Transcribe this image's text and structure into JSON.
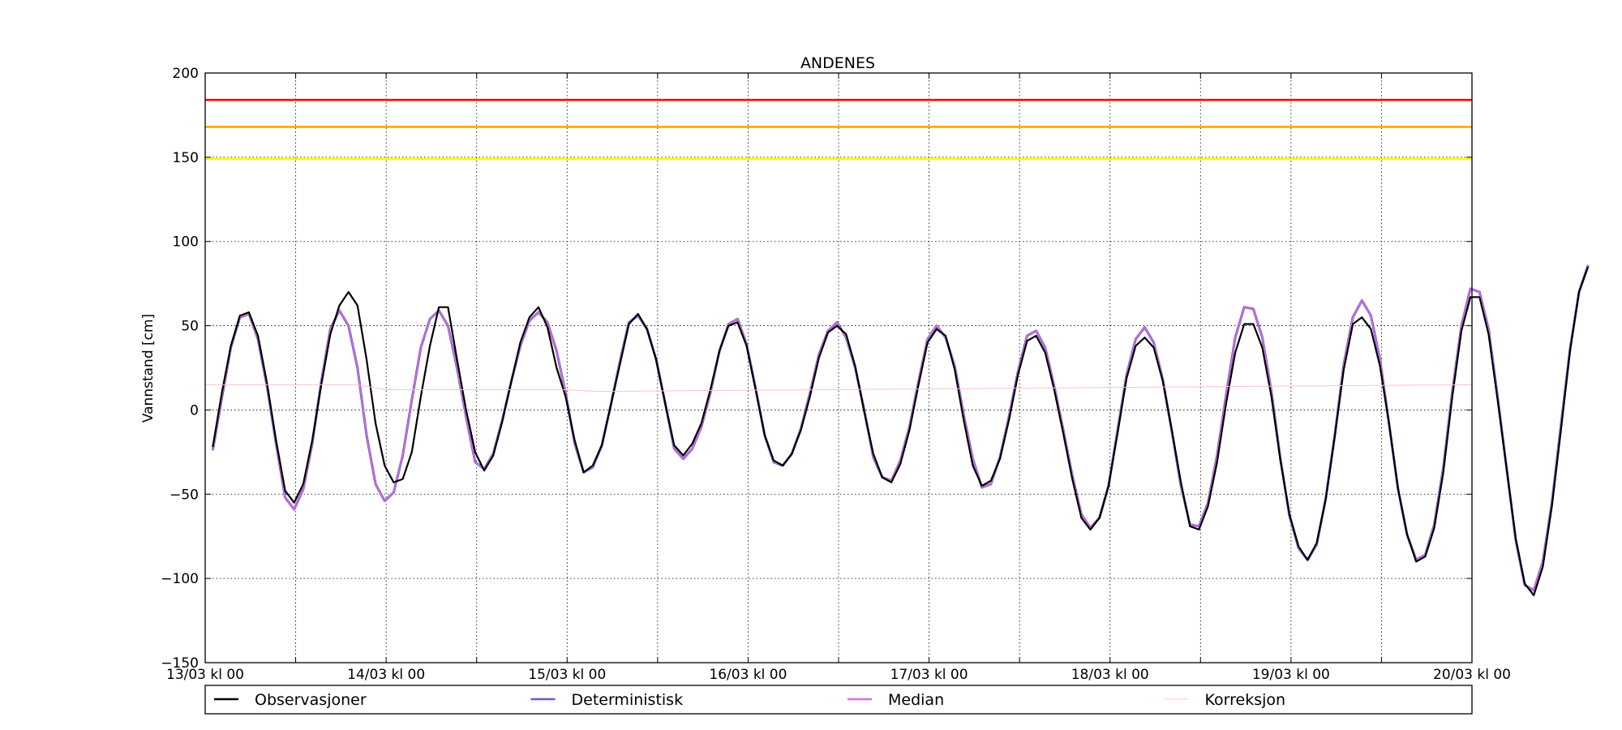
{
  "chart_data": {
    "type": "line",
    "title": "ANDENES",
    "xlabel": "",
    "ylabel": "Vannstand [cm]",
    "ylim": [
      -150,
      200
    ],
    "xlim_hours": [
      0,
      168
    ],
    "yticks": [
      -150,
      -100,
      -50,
      0,
      50,
      100,
      150,
      200
    ],
    "xtick_labels": [
      "13/03 kl 00",
      "14/03 kl 00",
      "15/03 kl 00",
      "16/03 kl 00",
      "17/03 kl 00",
      "18/03 kl 00",
      "19/03 kl 00",
      "20/03 kl 00"
    ],
    "grid": true,
    "legend_position": "below",
    "thresholds": [
      {
        "value": 184,
        "color": "#ff0000"
      },
      {
        "value": 168,
        "color": "#ffa500"
      },
      {
        "value": 149,
        "color": "#ffff00"
      }
    ],
    "series": [
      {
        "name": "Deterministisk",
        "color": "#6a5acd",
        "start": 1,
        "step": 1.2,
        "values": [
          -24,
          7,
          37,
          55,
          57,
          42,
          14,
          -20,
          -52,
          -59,
          -47,
          -20,
          17,
          48,
          59,
          50,
          25,
          -15,
          -44,
          -54,
          -49,
          -27,
          6,
          37,
          54,
          59,
          50,
          25,
          -4,
          -31,
          -35,
          -26,
          -6,
          17,
          38,
          53,
          58,
          52,
          35,
          10,
          -20,
          -37,
          -34,
          -21,
          3,
          29,
          52,
          56,
          48,
          30,
          4,
          -23,
          -29,
          -23,
          -10,
          10,
          35,
          51,
          54,
          39,
          13,
          -15,
          -31,
          -33,
          -26,
          -11,
          10,
          33,
          47,
          52,
          43,
          25,
          0,
          -28,
          -40,
          -42,
          -30,
          -10,
          17,
          42,
          50,
          43,
          26,
          -3,
          -29,
          -46,
          -44,
          -28,
          -4,
          23,
          44,
          47,
          37,
          14,
          -12,
          -39,
          -62,
          -70,
          -64,
          -45,
          -12,
          21,
          42,
          49,
          40,
          18,
          -13,
          -45,
          -68,
          -69,
          -55,
          -27,
          9,
          43,
          61,
          60,
          43,
          11,
          -29,
          -63,
          -82,
          -89,
          -80,
          -53,
          -15,
          27,
          55,
          65,
          56,
          30,
          -8,
          -47,
          -74,
          -89,
          -86,
          -68,
          -34,
          11,
          50,
          72,
          70,
          48,
          8,
          -35,
          -77,
          -104,
          -107,
          -90,
          -55,
          -9,
          36,
          70,
          86
        ]
      },
      {
        "name": "Median",
        "color": "#da70d6",
        "start": 1,
        "step": 1.2,
        "values": [
          -24,
          7,
          37,
          55,
          57,
          42,
          14,
          -20,
          -52,
          -59,
          -47,
          -20,
          17,
          48,
          59,
          50,
          25,
          -15,
          -44,
          -54,
          -49,
          -27,
          6,
          37,
          54,
          59,
          50,
          25,
          -4,
          -31,
          -35,
          -26,
          -6,
          17,
          38,
          53,
          58,
          52,
          35,
          10,
          -20,
          -37,
          -34,
          -21,
          3,
          29,
          52,
          56,
          48,
          30,
          4,
          -23,
          -29,
          -23,
          -10,
          10,
          35,
          51,
          54,
          39,
          13,
          -15,
          -31,
          -33,
          -26,
          -11,
          10,
          33,
          47,
          52,
          43,
          25,
          0,
          -28,
          -40,
          -42,
          -30,
          -10,
          17,
          42,
          50,
          43,
          26,
          -3,
          -29,
          -46,
          -44,
          -28,
          -4,
          23,
          44,
          47,
          37,
          14,
          -12,
          -39,
          -62,
          -70,
          -64,
          -45,
          -12,
          21,
          42,
          49,
          40,
          18,
          -13,
          -45,
          -68,
          -69,
          -55,
          -27,
          9,
          43,
          61,
          60,
          43,
          11,
          -29,
          -63,
          -82,
          -89,
          -80,
          -53,
          -15,
          27,
          55,
          65,
          56,
          30,
          -8,
          -47,
          -74,
          -89,
          -86,
          -68,
          -34,
          11,
          50,
          72,
          70,
          48,
          8,
          -35,
          -77,
          -104,
          -107,
          -90,
          -55,
          -9,
          36,
          70,
          86
        ]
      },
      {
        "name": "Observasjoner",
        "color": "#000000",
        "start": 1,
        "step": 1.2,
        "values": [
          -22,
          10,
          38,
          56,
          58,
          44,
          16,
          -18,
          -48,
          -55,
          -44,
          -18,
          15,
          45,
          62,
          70,
          62,
          30,
          -8,
          -33,
          -43,
          -41,
          -25,
          8,
          38,
          61,
          61,
          30,
          0,
          -25,
          -36,
          -27,
          -7,
          17,
          40,
          55,
          61,
          49,
          25,
          8,
          -18,
          -37,
          -33,
          -21,
          3,
          27,
          51,
          57,
          48,
          30,
          4,
          -21,
          -27,
          -20,
          -8,
          12,
          35,
          50,
          52,
          38,
          12,
          -15,
          -30,
          -33,
          -26,
          -12,
          8,
          31,
          46,
          50,
          45,
          26,
          -1,
          -26,
          -40,
          -43,
          -32,
          -12,
          15,
          40,
          48,
          44,
          24,
          -6,
          -33,
          -45,
          -42,
          -29,
          -6,
          21,
          41,
          44,
          34,
          12,
          -14,
          -41,
          -64,
          -71,
          -64,
          -45,
          -14,
          19,
          38,
          43,
          37,
          17,
          -12,
          -43,
          -69,
          -71,
          -57,
          -31,
          4,
          34,
          51,
          51,
          37,
          8,
          -30,
          -62,
          -81,
          -89,
          -79,
          -53,
          -16,
          24,
          51,
          55,
          48,
          26,
          -8,
          -47,
          -74,
          -90,
          -87,
          -70,
          -37,
          8,
          47,
          67,
          67,
          45,
          6,
          -35,
          -76,
          -103,
          -110,
          -93,
          -57,
          -12,
          35,
          70,
          85
        ]
      },
      {
        "name": "Korreksjon",
        "color": "#ffc0cb",
        "x_hours": [
          0,
          20,
          24,
          48,
          52,
          168
        ],
        "values": [
          15,
          15,
          12,
          12,
          11,
          15
        ]
      }
    ],
    "legend": [
      "Observasjoner",
      "Deterministisk",
      "Median",
      "Korreksjon"
    ]
  }
}
